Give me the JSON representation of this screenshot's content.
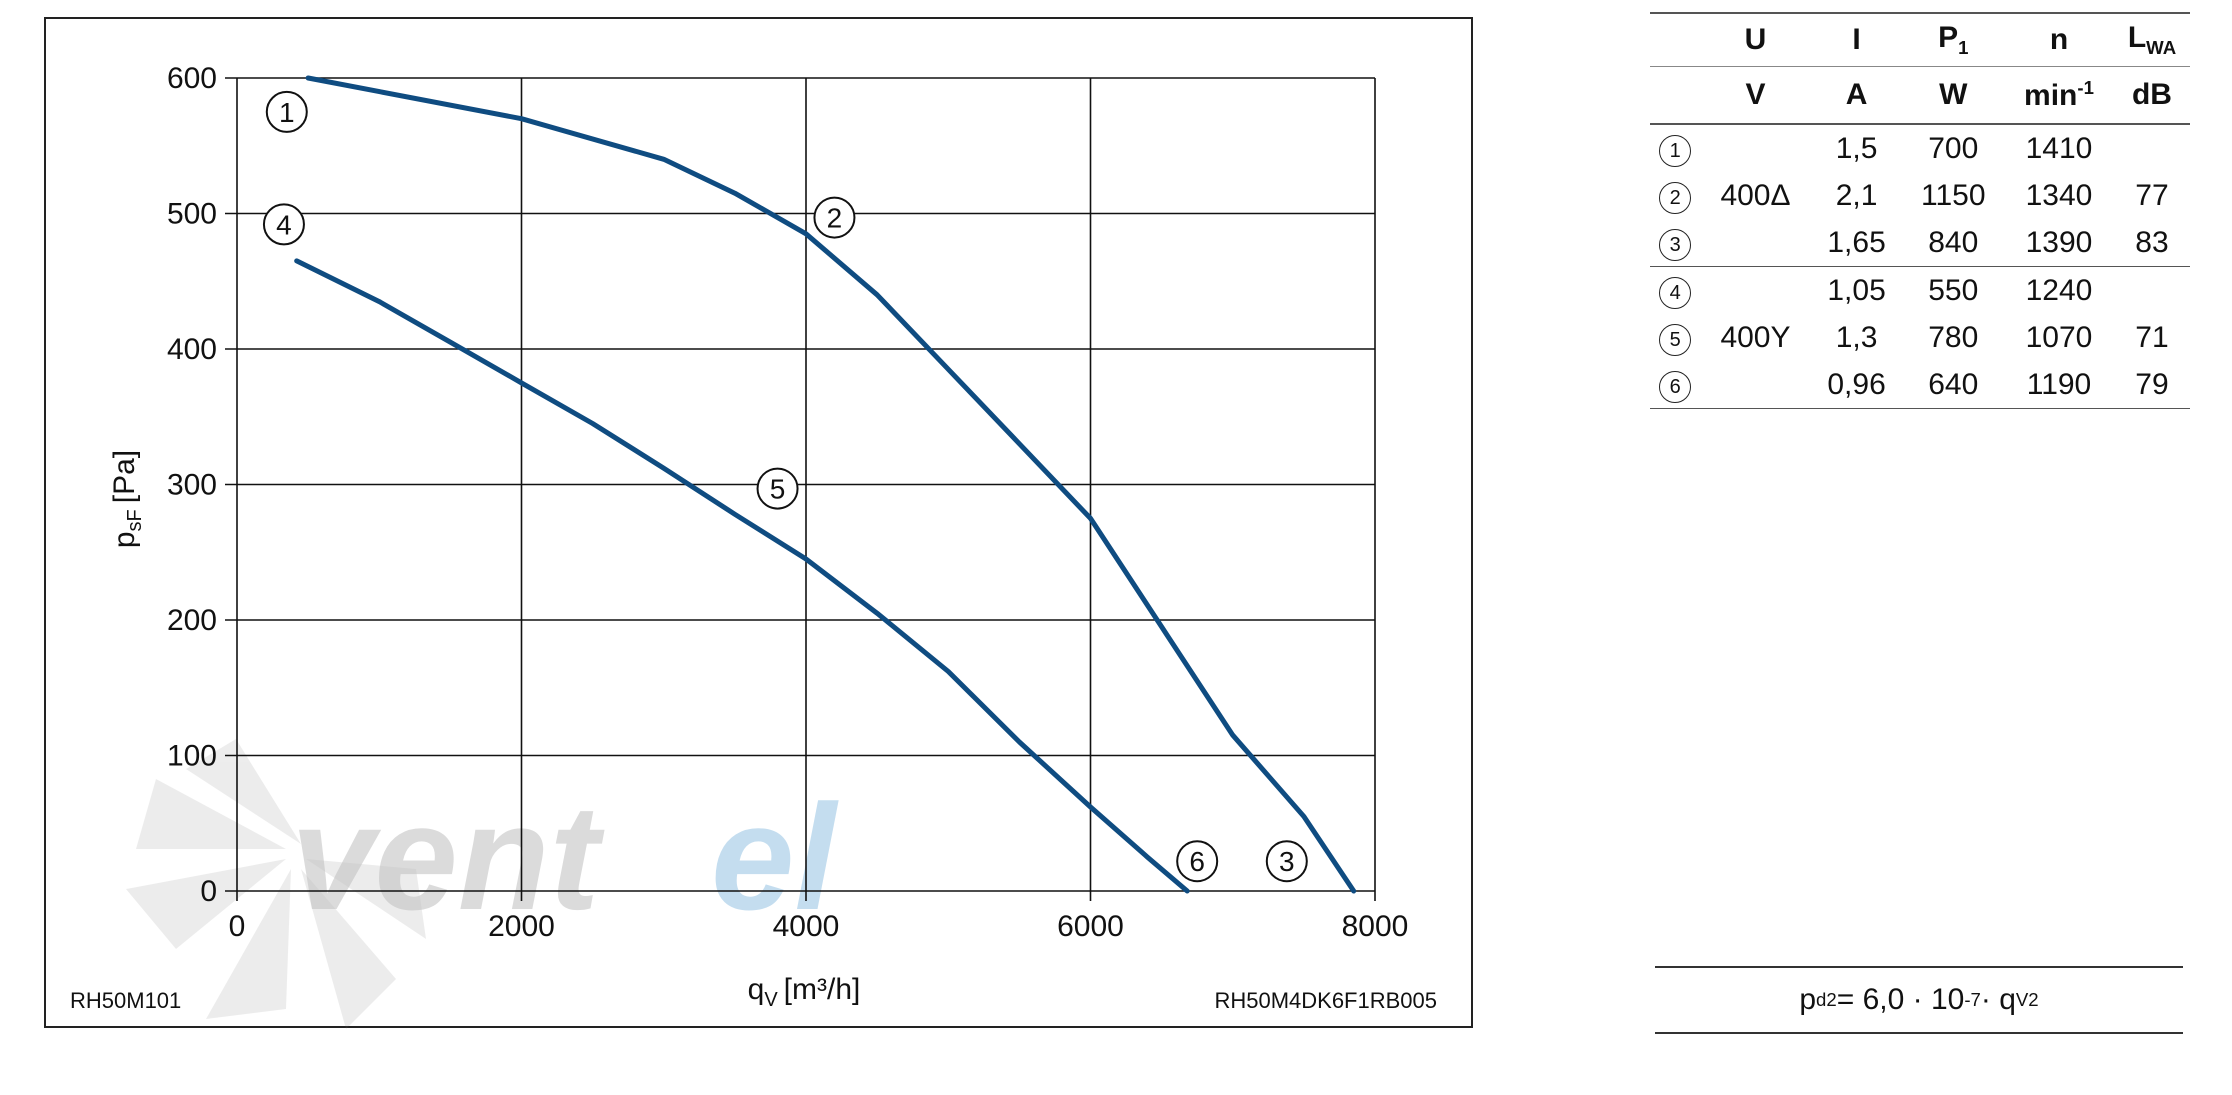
{
  "chart_data": {
    "type": "line",
    "xlabel": "q",
    "xlabel_sub": "V",
    "xlabel_unit": "[m³/h]",
    "ylabel": "p",
    "ylabel_sub": "sF",
    "ylabel_unit": "[Pa]",
    "xlim": [
      0,
      8000
    ],
    "ylim": [
      0,
      600
    ],
    "x_ticks": [
      0,
      2000,
      4000,
      6000,
      8000
    ],
    "y_ticks": [
      0,
      100,
      200,
      300,
      400,
      500,
      600
    ],
    "grid": true,
    "series": [
      {
        "x": [
          500,
          1000,
          2000,
          3000,
          3500,
          4000,
          4500,
          5000,
          5500,
          6000,
          6500,
          7000,
          7500,
          7850
        ],
        "y": [
          600,
          590,
          570,
          540,
          515,
          485,
          440,
          385,
          330,
          275,
          195,
          115,
          55,
          0
        ]
      },
      {
        "x": [
          420,
          1000,
          1500,
          2000,
          2500,
          3000,
          3500,
          4000,
          4500,
          5000,
          5500,
          6000,
          6400,
          6680
        ],
        "y": [
          465,
          435,
          405,
          375,
          345,
          312,
          278,
          245,
          205,
          162,
          110,
          62,
          25,
          0
        ]
      }
    ],
    "point_markers": [
      {
        "label": "1",
        "x": 350,
        "y": 575
      },
      {
        "label": "2",
        "x": 4200,
        "y": 497
      },
      {
        "label": "3",
        "x": 7380,
        "y": 22
      },
      {
        "label": "4",
        "x": 330,
        "y": 492
      },
      {
        "label": "5",
        "x": 3800,
        "y": 297
      },
      {
        "label": "6",
        "x": 6750,
        "y": 22
      }
    ],
    "line_color": "#0f4c81",
    "model_left": "RH50M101",
    "model_right": "RH50M4DK6F1RB005"
  },
  "watermark": {
    "text_grey": "vent",
    "text_blue": "el"
  },
  "table": {
    "headers": {
      "U": "U",
      "I": "I",
      "P": "P",
      "P_sub": "1",
      "n": "n",
      "L": "L",
      "L_sub": "WA"
    },
    "units": {
      "U": "V",
      "I": "A",
      "P": "W",
      "n": "min",
      "n_sup": "-1",
      "L": "dB"
    },
    "rows": [
      {
        "marker": "1",
        "U": "",
        "I": "1,5",
        "P": "700",
        "n": "1410",
        "L": ""
      },
      {
        "marker": "2",
        "U": "400Δ",
        "I": "2,1",
        "P": "1150",
        "n": "1340",
        "L": "77"
      },
      {
        "marker": "3",
        "U": "",
        "I": "1,65",
        "P": "840",
        "n": "1390",
        "L": "83"
      },
      {
        "marker": "4",
        "U": "",
        "I": "1,05",
        "P": "550",
        "n": "1240",
        "L": ""
      },
      {
        "marker": "5",
        "U": "400Y",
        "I": "1,3",
        "P": "780",
        "n": "1070",
        "L": "71"
      },
      {
        "marker": "6",
        "U": "",
        "I": "0,96",
        "P": "640",
        "n": "1190",
        "L": "79"
      }
    ]
  },
  "formula": {
    "p": "p",
    "p_sub": "d2",
    "eq": " = 6,0 · 10",
    "exp": "-7",
    "mid": " · q",
    "q_sub": "V",
    "q_sup": "2"
  }
}
